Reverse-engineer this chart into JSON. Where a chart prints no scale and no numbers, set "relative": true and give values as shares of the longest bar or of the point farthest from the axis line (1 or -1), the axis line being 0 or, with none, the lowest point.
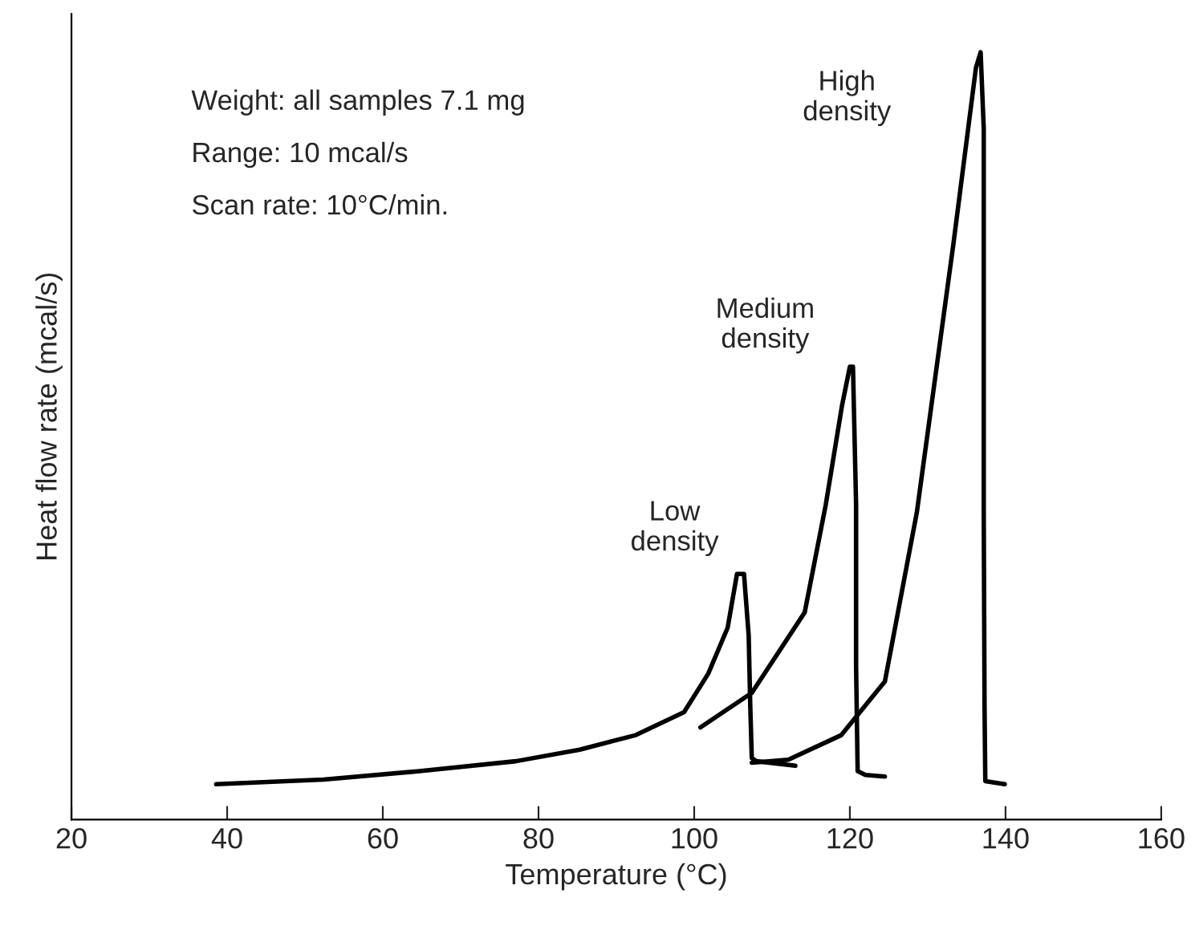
{
  "chart_data": {
    "type": "line",
    "relative": true,
    "xlabel": "Temperature (°C)",
    "ylabel": "Heat flow rate (mcal/s)",
    "xlim": [
      20,
      160
    ],
    "xticks": [
      20,
      40,
      60,
      80,
      100,
      120,
      140,
      160
    ],
    "grid": false,
    "legend": false,
    "marker": "none",
    "line_style": "solid",
    "annotations": [
      "Weight: all samples 7.1 mg",
      "Range: 10 mcal/s",
      "Scan rate: 10°C/min."
    ],
    "series": [
      {
        "name": "Low density",
        "color": "#000000",
        "x": [
          38.6,
          52.4,
          64.7,
          77.1,
          85.3,
          92.5,
          98.7,
          101.8,
          104.3,
          105.5,
          106.4,
          107.0,
          107.2,
          107.4,
          108.0,
          113.0
        ],
        "values": [
          0.046,
          0.052,
          0.063,
          0.076,
          0.091,
          0.11,
          0.14,
          0.19,
          0.25,
          0.32,
          0.32,
          0.24,
          0.15,
          0.08,
          0.076,
          0.07
        ]
      },
      {
        "name": "Medium density",
        "color": "#000000",
        "x": [
          100.8,
          107.4,
          114.2,
          116.9,
          119.0,
          120.0,
          120.4,
          120.8,
          120.8,
          121.0,
          122.0,
          124.5
        ],
        "values": [
          0.12,
          0.165,
          0.27,
          0.41,
          0.54,
          0.59,
          0.59,
          0.41,
          0.2,
          0.063,
          0.058,
          0.056
        ]
      },
      {
        "name": "High density",
        "color": "#000000",
        "x": [
          107.4,
          112.1,
          118.9,
          124.5,
          128.6,
          133.3,
          136.2,
          136.8,
          137.2,
          137.2,
          137.3,
          137.4,
          139.9
        ],
        "values": [
          0.074,
          0.078,
          0.11,
          0.18,
          0.4,
          0.75,
          0.98,
          1.0,
          0.9,
          0.4,
          0.15,
          0.05,
          0.046
        ]
      }
    ]
  }
}
